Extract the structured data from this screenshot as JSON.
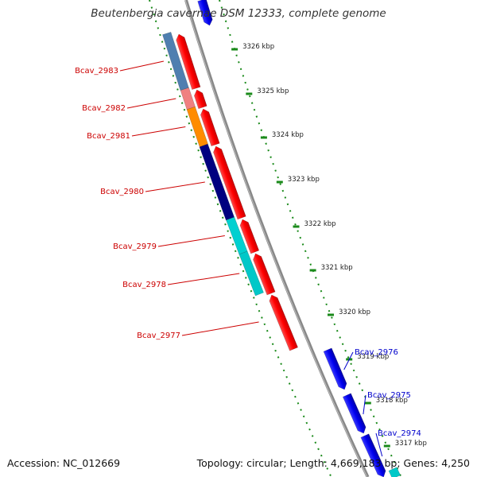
{
  "title": "Beutenbergia cavernae DSM 12333, complete genome",
  "footer": {
    "accession_prefix": "Accession: ",
    "accession": "NC_012669",
    "topology_prefix": "Topology: ",
    "topology": "circular",
    "length_prefix": "; Length: ",
    "length": "4,669,183 bp",
    "genes_prefix": "; Genes: ",
    "genes": "4,250"
  },
  "colors": {
    "reverse_label": "#cc0000",
    "forward_label": "#0000cc",
    "backbone": "#888888",
    "ticks": "#1a8a1a",
    "arrow_red": "#ff0000",
    "arrow_blue": "#0000ee"
  },
  "scale_ticks": [
    {
      "label": "3326 kbp"
    },
    {
      "label": "3325 kbp"
    },
    {
      "label": "3324 kbp"
    },
    {
      "label": "3323 kbp"
    },
    {
      "label": "3322 kbp"
    },
    {
      "label": "3321 kbp"
    },
    {
      "label": "3320 kbp"
    },
    {
      "label": "3319 kbp"
    },
    {
      "label": "3318 kbp"
    },
    {
      "label": "3317 kbp"
    }
  ],
  "genes_reverse": [
    {
      "name": "Bcav_2983",
      "cog_color": "#4f7fb0"
    },
    {
      "name": "Bcav_2982",
      "cog_color": "#f08080"
    },
    {
      "name": "Bcav_2981",
      "cog_color": "#ff8c00"
    },
    {
      "name": "Bcav_2980",
      "cog_color": "#000080"
    },
    {
      "name": "Bcav_2979",
      "cog_color": "#00d0d0"
    },
    {
      "name": "Bcav_2978",
      "cog_color": "#00c8c8"
    },
    {
      "name": "Bcav_2977",
      "cog_color": ""
    }
  ],
  "genes_forward": [
    {
      "name": "Bcav_2976"
    },
    {
      "name": "Bcav_2975"
    },
    {
      "name": "Bcav_2974"
    }
  ]
}
